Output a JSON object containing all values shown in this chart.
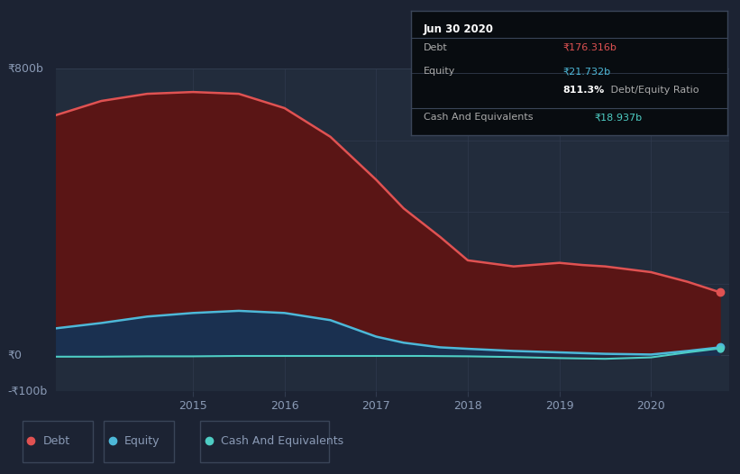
{
  "bg_color": "#1c2333",
  "plot_bg_color": "#222c3c",
  "ylim": [
    -100,
    800
  ],
  "yticks": [
    -100,
    0,
    800
  ],
  "ytick_labels": [
    "-₹100b",
    "₹0",
    "₹800b"
  ],
  "xlim": [
    2013.5,
    2020.85
  ],
  "xticks": [
    2015,
    2016,
    2017,
    2018,
    2019,
    2020
  ],
  "debt_x": [
    2013.5,
    2014.0,
    2014.5,
    2015.0,
    2015.5,
    2016.0,
    2016.5,
    2017.0,
    2017.3,
    2017.7,
    2018.0,
    2018.5,
    2019.0,
    2019.25,
    2019.5,
    2020.0,
    2020.4,
    2020.75
  ],
  "debt_y": [
    670,
    710,
    730,
    735,
    730,
    690,
    610,
    490,
    410,
    330,
    265,
    248,
    258,
    252,
    248,
    232,
    205,
    176
  ],
  "equity_x": [
    2013.5,
    2014.0,
    2014.5,
    2015.0,
    2015.5,
    2016.0,
    2016.5,
    2017.0,
    2017.3,
    2017.7,
    2018.0,
    2018.5,
    2019.0,
    2019.5,
    2020.0,
    2020.4,
    2020.75
  ],
  "equity_y": [
    75,
    90,
    108,
    118,
    124,
    118,
    98,
    52,
    35,
    22,
    18,
    12,
    8,
    4,
    2,
    12,
    22
  ],
  "cash_x": [
    2013.5,
    2014.0,
    2014.5,
    2015.0,
    2015.5,
    2016.0,
    2016.5,
    2017.0,
    2017.5,
    2018.0,
    2018.5,
    2019.0,
    2019.5,
    2020.0,
    2020.4,
    2020.75
  ],
  "cash_y": [
    -4,
    -4,
    -3,
    -3,
    -2,
    -2,
    -2,
    -2,
    -2,
    -3,
    -5,
    -8,
    -10,
    -6,
    8,
    19
  ],
  "debt_color": "#e05252",
  "equity_color": "#4db8d8",
  "cash_color": "#4ecdc4",
  "debt_fill": "#5a1515",
  "equity_fill": "#1a3050",
  "grid_color": "#303a4e",
  "tick_color": "#8a9ab5",
  "legend": [
    {
      "label": "Debt",
      "color": "#e05252"
    },
    {
      "label": "Equity",
      "color": "#4db8d8"
    },
    {
      "label": "Cash And Equivalents",
      "color": "#4ecdc4"
    }
  ],
  "infobox_title": "Jun 30 2020",
  "infobox_rows": [
    {
      "label": "Debt",
      "value": "₹176.316b",
      "vcolor": "#e05252",
      "bold_val": false
    },
    {
      "label": "Equity",
      "value": "₹21.732b",
      "vcolor": "#4db8d8",
      "bold_val": false
    },
    {
      "label": "",
      "value": "811.3%",
      "vcolor": "#ffffff",
      "bold_val": true,
      "suffix": " Debt/Equity Ratio",
      "scolor": "#aaaaaa"
    },
    {
      "label": "Cash And Equivalents",
      "value": "₹18.937b",
      "vcolor": "#4ecdc4",
      "bold_val": false
    }
  ]
}
